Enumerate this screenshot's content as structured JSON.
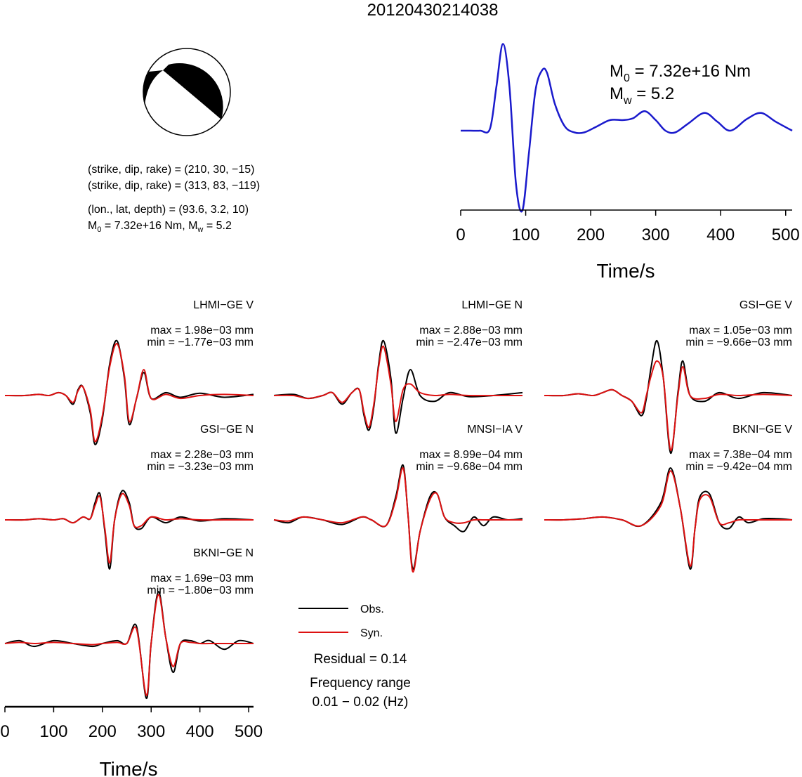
{
  "title": "20120430214038",
  "mechanism": {
    "nodal_plane_1": "(strike, dip, rake) = (210, 30, −15)",
    "nodal_plane_2": "(strike, dip, rake) = (313, 83, −119)",
    "location": "(lon., lat, depth) = (93.6, 3.2, 10)",
    "moment_prefix": "M",
    "moment_sub": "0",
    "moment_text": " = 7.32e+16 Nm, M",
    "mw_sub": "w",
    "mw_text": " = 5.2",
    "beach_ball_colors": {
      "fill": "#000000",
      "background": "#ffffff"
    }
  },
  "stf": {
    "moment_label": "M",
    "moment_sub": "0",
    "moment_value": " = 7.32e+16 Nm",
    "mw_label": "M",
    "mw_sub": "w",
    "mw_value": " = 5.2",
    "xlabel": "Time/s"
  },
  "legend": {
    "obs_label": "Obs.",
    "syn_label": "Syn.",
    "residual": "Residual = 0.14",
    "freq_title": "Frequency range",
    "freq_range": "0.01 − 0.02 (Hz)"
  },
  "waveform_axis": {
    "xlabel": "Time/s"
  },
  "chart_data": [
    {
      "type": "line",
      "name": "source-time-function",
      "xlim": [
        0,
        510
      ],
      "xticks": [
        0,
        100,
        200,
        300,
        400,
        500
      ],
      "xlabel": "Time/s",
      "ylim": [
        -1.0,
        1.0
      ],
      "color": "#1a1acc",
      "x": [
        0,
        15,
        30,
        45,
        55,
        65,
        75,
        85,
        95,
        105,
        115,
        125,
        133,
        145,
        160,
        175,
        190,
        210,
        230,
        250,
        265,
        283,
        300,
        315,
        330,
        350,
        375,
        395,
        415,
        440,
        462,
        485,
        510
      ],
      "y": [
        0.0,
        0.0,
        0.0,
        0.02,
        0.5,
        0.98,
        0.5,
        -0.6,
        -0.9,
        -0.25,
        0.45,
        0.68,
        0.65,
        0.3,
        0.05,
        -0.02,
        -0.02,
        0.05,
        0.12,
        0.12,
        0.14,
        0.22,
        0.12,
        0.0,
        -0.02,
        0.08,
        0.2,
        0.1,
        0.0,
        0.13,
        0.2,
        0.1,
        0.0
      ]
    },
    {
      "type": "line",
      "name": "waveform-fits",
      "xlim": [
        0,
        510
      ],
      "xticks": [
        0,
        100,
        200,
        300,
        400,
        500
      ],
      "xlabel": "Time/s",
      "series_colors": {
        "Obs.": "#000000",
        "Syn.": "#dd1111"
      },
      "stations": [
        {
          "station": "LHMI−GE V",
          "max": "max = 1.98e−03 mm",
          "min": "min = −1.77e−03 mm",
          "x": [
            0,
            40,
            70,
            90,
            110,
            125,
            140,
            150,
            160,
            175,
            185,
            200,
            215,
            230,
            245,
            255,
            270,
            285,
            300,
            330,
            360,
            400,
            450,
            510
          ],
          "obs": [
            0.0,
            0.0,
            0.02,
            0.0,
            0.05,
            0.0,
            -0.15,
            0.1,
            0.15,
            -0.3,
            -0.85,
            -0.4,
            0.55,
            0.95,
            0.3,
            -0.5,
            -0.05,
            0.4,
            -0.05,
            0.05,
            -0.03,
            0.04,
            -0.03,
            0.02
          ],
          "syn": [
            0.0,
            0.0,
            0.02,
            0.0,
            0.05,
            0.0,
            -0.12,
            0.08,
            0.15,
            -0.25,
            -0.8,
            -0.35,
            0.5,
            0.9,
            0.35,
            -0.45,
            -0.05,
            0.45,
            -0.05,
            0.02,
            -0.05,
            0.0,
            0.02,
            0.0
          ]
        },
        {
          "station": "LHMI−GE N",
          "max": "max = 2.88e−03 mm",
          "min": "min = −2.47e−03 mm",
          "x": [
            0,
            40,
            70,
            100,
            120,
            140,
            160,
            175,
            185,
            195,
            205,
            215,
            225,
            240,
            250,
            265,
            280,
            300,
            330,
            360,
            400,
            450,
            510
          ],
          "obs": [
            0.0,
            0.02,
            -0.05,
            0.0,
            0.05,
            -0.15,
            0.05,
            0.1,
            -0.35,
            -0.6,
            -0.2,
            0.55,
            0.95,
            0.3,
            -0.65,
            -0.05,
            0.45,
            0.0,
            -0.1,
            0.05,
            -0.02,
            0.0,
            0.05
          ],
          "syn": [
            0.0,
            0.0,
            -0.05,
            0.0,
            0.05,
            -0.12,
            0.05,
            0.1,
            -0.3,
            -0.55,
            -0.15,
            0.5,
            0.85,
            0.2,
            -0.45,
            0.1,
            0.2,
            0.05,
            0.0,
            0.02,
            0.0,
            0.0,
            0.0
          ]
        },
        {
          "station": "GSI−GE V",
          "max": "max = 1.05e−03 mm",
          "min": "min = −9.66e−03 mm",
          "x": [
            0,
            40,
            70,
            100,
            120,
            140,
            160,
            180,
            200,
            210,
            220,
            232,
            245,
            260,
            275,
            285,
            300,
            330,
            360,
            400,
            450,
            510
          ],
          "obs": [
            0.0,
            0.0,
            0.03,
            0.0,
            0.05,
            0.1,
            0.0,
            -0.1,
            -0.35,
            -0.05,
            0.5,
            0.95,
            0.3,
            -1.0,
            0.05,
            0.6,
            0.0,
            -0.1,
            0.05,
            -0.05,
            0.05,
            0.0
          ],
          "syn": [
            0.0,
            0.0,
            0.03,
            0.0,
            0.05,
            0.1,
            0.0,
            -0.1,
            -0.3,
            0.0,
            0.35,
            0.6,
            0.3,
            -0.95,
            0.0,
            0.5,
            0.0,
            -0.05,
            0.02,
            0.0,
            0.02,
            0.0
          ]
        },
        {
          "station": "GSI−GE N",
          "max": "max = 2.28e−03 mm",
          "min": "min = −3.23e−03 mm",
          "x": [
            0,
            40,
            70,
            100,
            120,
            140,
            160,
            175,
            185,
            195,
            205,
            215,
            225,
            240,
            255,
            265,
            280,
            300,
            330,
            360,
            400,
            450,
            510
          ],
          "obs": [
            0.0,
            0.0,
            0.02,
            0.0,
            0.02,
            -0.05,
            0.05,
            0.02,
            0.3,
            0.45,
            -0.2,
            -0.85,
            0.0,
            0.5,
            0.3,
            -0.1,
            -0.15,
            0.05,
            -0.05,
            0.05,
            -0.02,
            0.02,
            0.0
          ],
          "syn": [
            0.0,
            0.0,
            0.02,
            0.0,
            0.02,
            -0.05,
            0.05,
            0.02,
            0.25,
            0.4,
            -0.15,
            -0.75,
            0.0,
            0.45,
            0.25,
            -0.1,
            -0.1,
            0.05,
            0.0,
            0.02,
            0.0,
            0.0,
            0.0
          ]
        },
        {
          "station": "MNSI−IA V",
          "max": "max = 8.99e−04 mm",
          "min": "min = −9.68e−04 mm",
          "x": [
            0,
            30,
            60,
            100,
            140,
            180,
            200,
            230,
            250,
            265,
            275,
            285,
            300,
            320,
            335,
            350,
            370,
            390,
            410,
            430,
            450,
            480,
            510
          ],
          "obs": [
            0.0,
            -0.05,
            0.05,
            0.0,
            -0.08,
            0.05,
            0.0,
            -0.1,
            0.4,
            0.95,
            0.1,
            -0.85,
            -0.2,
            0.4,
            0.45,
            0.05,
            -0.1,
            -0.2,
            0.05,
            -0.1,
            0.05,
            0.0,
            0.02
          ],
          "syn": [
            0.0,
            -0.02,
            0.05,
            0.0,
            -0.05,
            0.05,
            0.0,
            -0.1,
            0.35,
            0.9,
            0.1,
            -0.9,
            -0.2,
            0.35,
            0.45,
            0.05,
            -0.05,
            -0.05,
            0.0,
            0.0,
            0.0,
            0.0,
            0.0
          ]
        },
        {
          "station": "BKNI−GE V",
          "max": "max = 7.38e−04 mm",
          "min": "min = −9.42e−04 mm",
          "x": [
            0,
            40,
            80,
            120,
            160,
            200,
            240,
            260,
            280,
            300,
            310,
            320,
            340,
            360,
            380,
            400,
            420,
            450,
            480,
            510
          ],
          "obs": [
            0.0,
            0.0,
            0.02,
            0.05,
            0.0,
            -0.1,
            0.3,
            0.9,
            0.2,
            -0.85,
            -0.15,
            0.4,
            0.45,
            -0.05,
            -0.15,
            0.05,
            -0.05,
            0.02,
            0.02,
            0.0
          ],
          "syn": [
            0.0,
            0.0,
            0.02,
            0.05,
            0.0,
            -0.1,
            0.25,
            0.85,
            0.2,
            -0.8,
            -0.15,
            0.35,
            0.4,
            -0.05,
            -0.05,
            0.0,
            0.0,
            0.0,
            0.0,
            0.0
          ]
        },
        {
          "station": "BKNI−GE N",
          "max": "max = 1.69e−03 mm",
          "min": "min = −1.80e−03 mm",
          "x": [
            0,
            30,
            60,
            100,
            140,
            180,
            200,
            230,
            250,
            270,
            290,
            300,
            315,
            330,
            345,
            360,
            380,
            400,
            420,
            450,
            480,
            510
          ],
          "obs": [
            0.0,
            0.05,
            -0.05,
            0.05,
            0.0,
            -0.05,
            0.0,
            0.05,
            0.0,
            0.3,
            -0.95,
            0.0,
            0.9,
            0.1,
            -0.5,
            0.0,
            0.05,
            0.0,
            0.05,
            -0.1,
            0.05,
            0.0
          ],
          "syn": [
            0.0,
            0.02,
            0.0,
            0.02,
            0.0,
            -0.02,
            0.0,
            0.02,
            0.0,
            0.25,
            -0.9,
            0.0,
            0.85,
            0.1,
            -0.4,
            0.0,
            0.02,
            0.0,
            0.0,
            0.0,
            0.0,
            0.0
          ]
        }
      ]
    }
  ]
}
